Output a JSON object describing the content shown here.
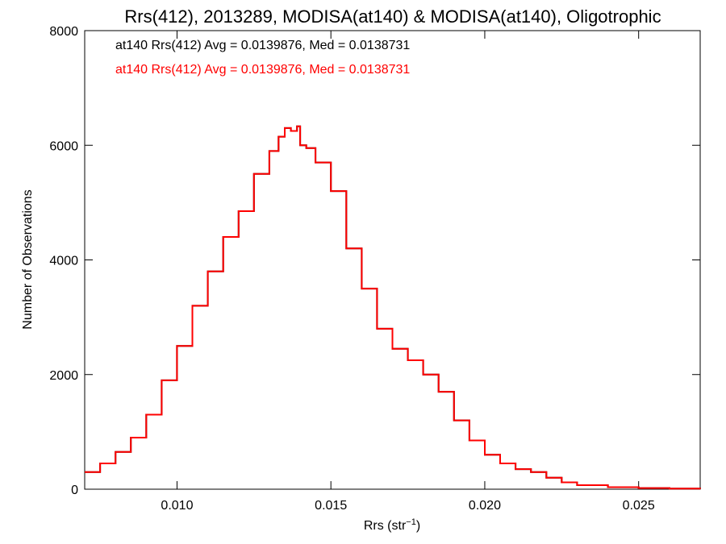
{
  "chart_data": {
    "type": "line",
    "title": "Rrs(412), 2013289, MODISA(at140) & MODISA(at140), Oligotrophic",
    "xlabel": "Rrs (str",
    "xlabel_sup": "−1",
    "xlabel_close": ")",
    "ylabel": "Number of Observations",
    "xlim": [
      0.007,
      0.027
    ],
    "ylim": [
      0,
      8000
    ],
    "x_ticks": [
      0.01,
      0.015,
      0.02,
      0.025
    ],
    "x_tick_labels": [
      "0.010",
      "0.015",
      "0.020",
      "0.025"
    ],
    "y_ticks": [
      0,
      2000,
      4000,
      6000,
      8000
    ],
    "y_tick_labels": [
      "0",
      "2000",
      "4000",
      "6000",
      "8000"
    ],
    "grid": false,
    "annotations": [
      {
        "text": "at140 Rrs(412) Avg = 0.0139876, Med = 0.0138731",
        "color": "#000000"
      },
      {
        "text": "at140 Rrs(412) Avg = 0.0139876, Med = 0.0138731",
        "color": "#ff0000"
      }
    ],
    "series": [
      {
        "color": "#000000",
        "x": [
          0.007,
          0.0075,
          0.008,
          0.0085,
          0.009,
          0.0095,
          0.01,
          0.0105,
          0.011,
          0.0115,
          0.012,
          0.0125,
          0.013,
          0.0133,
          0.0135,
          0.0137,
          0.0139,
          0.014,
          0.0142,
          0.0145,
          0.015,
          0.0155,
          0.016,
          0.0165,
          0.017,
          0.0175,
          0.018,
          0.0185,
          0.019,
          0.0195,
          0.02,
          0.0205,
          0.021,
          0.0215,
          0.022,
          0.0225,
          0.023,
          0.024,
          0.025,
          0.026,
          0.027
        ],
        "y": [
          300,
          450,
          650,
          900,
          1300,
          1900,
          2500,
          3200,
          3800,
          4400,
          4850,
          5500,
          5900,
          6150,
          6300,
          6250,
          6330,
          6000,
          5950,
          5700,
          5200,
          4200,
          3500,
          2800,
          2450,
          2250,
          2000,
          1700,
          1200,
          850,
          600,
          450,
          350,
          300,
          200,
          120,
          70,
          35,
          20,
          10,
          5
        ]
      },
      {
        "color": "#ff0000",
        "x": [
          0.007,
          0.0075,
          0.008,
          0.0085,
          0.009,
          0.0095,
          0.01,
          0.0105,
          0.011,
          0.0115,
          0.012,
          0.0125,
          0.013,
          0.0133,
          0.0135,
          0.0137,
          0.0139,
          0.014,
          0.0142,
          0.0145,
          0.015,
          0.0155,
          0.016,
          0.0165,
          0.017,
          0.0175,
          0.018,
          0.0185,
          0.019,
          0.0195,
          0.02,
          0.0205,
          0.021,
          0.0215,
          0.022,
          0.0225,
          0.023,
          0.024,
          0.025,
          0.026,
          0.027
        ],
        "y": [
          300,
          450,
          650,
          900,
          1300,
          1900,
          2500,
          3200,
          3800,
          4400,
          4850,
          5500,
          5900,
          6150,
          6300,
          6250,
          6330,
          6000,
          5950,
          5700,
          5200,
          4200,
          3500,
          2800,
          2450,
          2250,
          2000,
          1700,
          1200,
          850,
          600,
          450,
          350,
          300,
          200,
          120,
          70,
          35,
          20,
          10,
          5
        ]
      }
    ]
  }
}
